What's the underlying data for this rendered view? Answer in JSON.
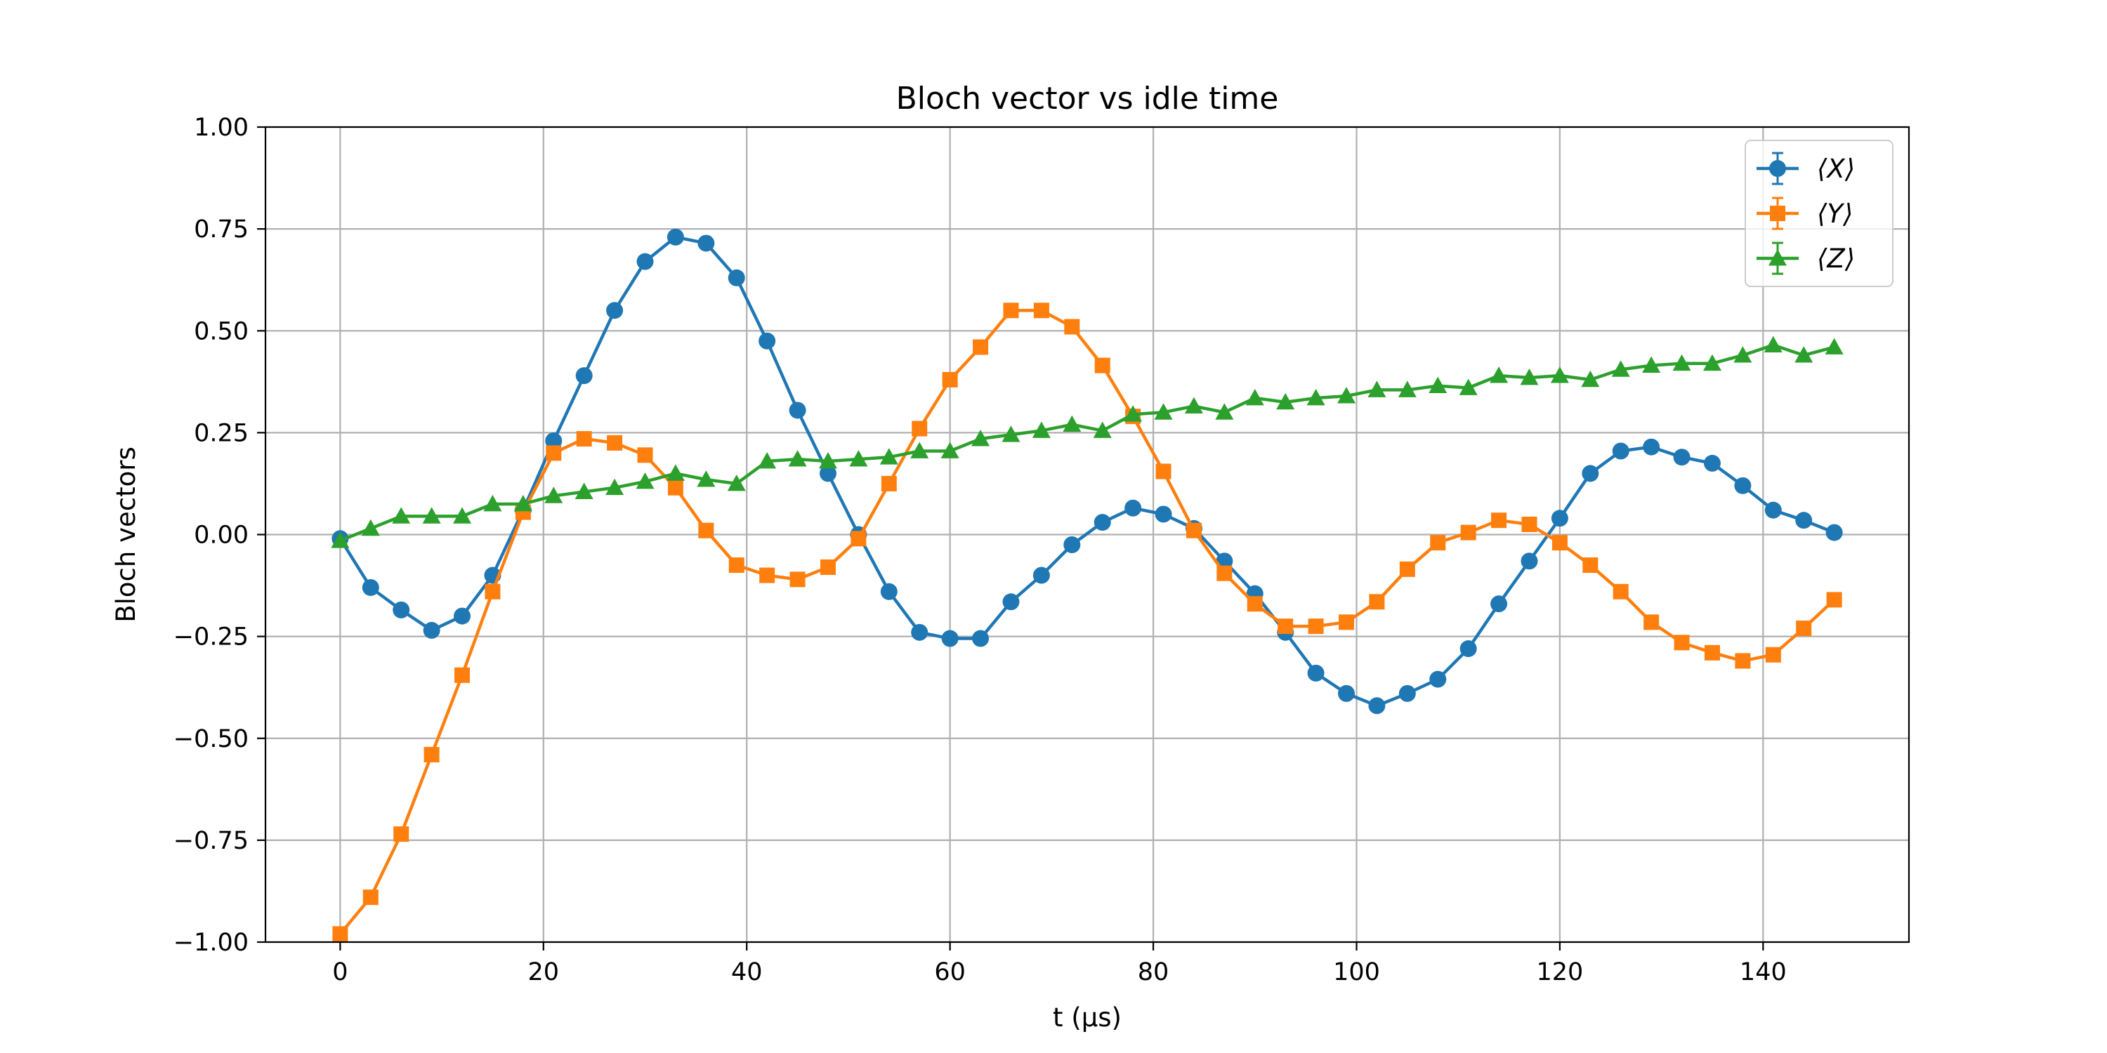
{
  "chart_data": {
    "type": "line",
    "title": "Bloch vector vs idle time",
    "xlabel": "t (μs)",
    "ylabel": "Bloch vectors",
    "xlim": [
      -7.35,
      154.35
    ],
    "ylim": [
      -1.0,
      1.0
    ],
    "xticks": [
      0,
      20,
      40,
      60,
      80,
      100,
      120,
      140
    ],
    "xtick_labels": [
      "0",
      "20",
      "40",
      "60",
      "80",
      "100",
      "120",
      "140"
    ],
    "yticks": [
      -1.0,
      -0.75,
      -0.5,
      -0.25,
      0.0,
      0.25,
      0.5,
      0.75,
      1.0
    ],
    "ytick_labels": [
      "−1.00",
      "−0.75",
      "−0.50",
      "−0.25",
      "0.00",
      "0.25",
      "0.50",
      "0.75",
      "1.00"
    ],
    "grid": true,
    "legend_position": "top-right",
    "x": [
      0,
      3,
      6,
      9,
      12,
      15,
      18,
      21,
      24,
      27,
      30,
      33,
      36,
      39,
      42,
      45,
      48,
      51,
      54,
      57,
      60,
      63,
      66,
      69,
      72,
      75,
      78,
      81,
      84,
      87,
      90,
      93,
      96,
      99,
      102,
      105,
      108,
      111,
      114,
      117,
      120,
      123,
      126,
      129,
      132,
      135,
      138,
      141,
      144,
      147
    ],
    "series": [
      {
        "name": "⟨X⟩",
        "color": "#1f77b4",
        "marker": "circle",
        "values": [
          -0.01,
          -0.13,
          -0.185,
          -0.235,
          -0.2,
          -0.1,
          0.06,
          0.23,
          0.39,
          0.55,
          0.67,
          0.73,
          0.715,
          0.63,
          0.475,
          0.305,
          0.15,
          0.0,
          -0.14,
          -0.24,
          -0.255,
          -0.255,
          -0.165,
          -0.1,
          -0.025,
          0.03,
          0.065,
          0.05,
          0.015,
          -0.065,
          -0.145,
          -0.24,
          -0.34,
          -0.39,
          -0.42,
          -0.39,
          -0.355,
          -0.28,
          -0.17,
          -0.065,
          0.04,
          0.15,
          0.205,
          0.215,
          0.19,
          0.175,
          0.12,
          0.06,
          0.035,
          0.005
        ]
      },
      {
        "name": "⟨Y⟩",
        "color": "#ff7f0e",
        "marker": "square",
        "values": [
          -0.98,
          -0.89,
          -0.735,
          -0.54,
          -0.345,
          -0.14,
          0.055,
          0.2,
          0.235,
          0.225,
          0.195,
          0.115,
          0.01,
          -0.075,
          -0.1,
          -0.11,
          -0.08,
          -0.01,
          0.125,
          0.26,
          0.38,
          0.46,
          0.55,
          0.55,
          0.51,
          0.415,
          0.29,
          0.155,
          0.01,
          -0.095,
          -0.17,
          -0.225,
          -0.225,
          -0.215,
          -0.165,
          -0.085,
          -0.02,
          0.005,
          0.035,
          0.025,
          -0.02,
          -0.075,
          -0.14,
          -0.215,
          -0.265,
          -0.29,
          -0.31,
          -0.295,
          -0.23,
          -0.16
        ]
      },
      {
        "name": "⟨Z⟩",
        "color": "#2ca02c",
        "marker": "triangle",
        "values": [
          -0.015,
          0.015,
          0.045,
          0.045,
          0.045,
          0.075,
          0.075,
          0.095,
          0.105,
          0.115,
          0.13,
          0.15,
          0.135,
          0.125,
          0.18,
          0.185,
          0.18,
          0.185,
          0.19,
          0.205,
          0.205,
          0.235,
          0.245,
          0.255,
          0.27,
          0.255,
          0.295,
          0.3,
          0.315,
          0.3,
          0.335,
          0.325,
          0.335,
          0.34,
          0.355,
          0.355,
          0.365,
          0.36,
          0.39,
          0.385,
          0.39,
          0.38,
          0.405,
          0.415,
          0.42,
          0.42,
          0.44,
          0.465,
          0.44,
          0.46
        ]
      }
    ]
  }
}
